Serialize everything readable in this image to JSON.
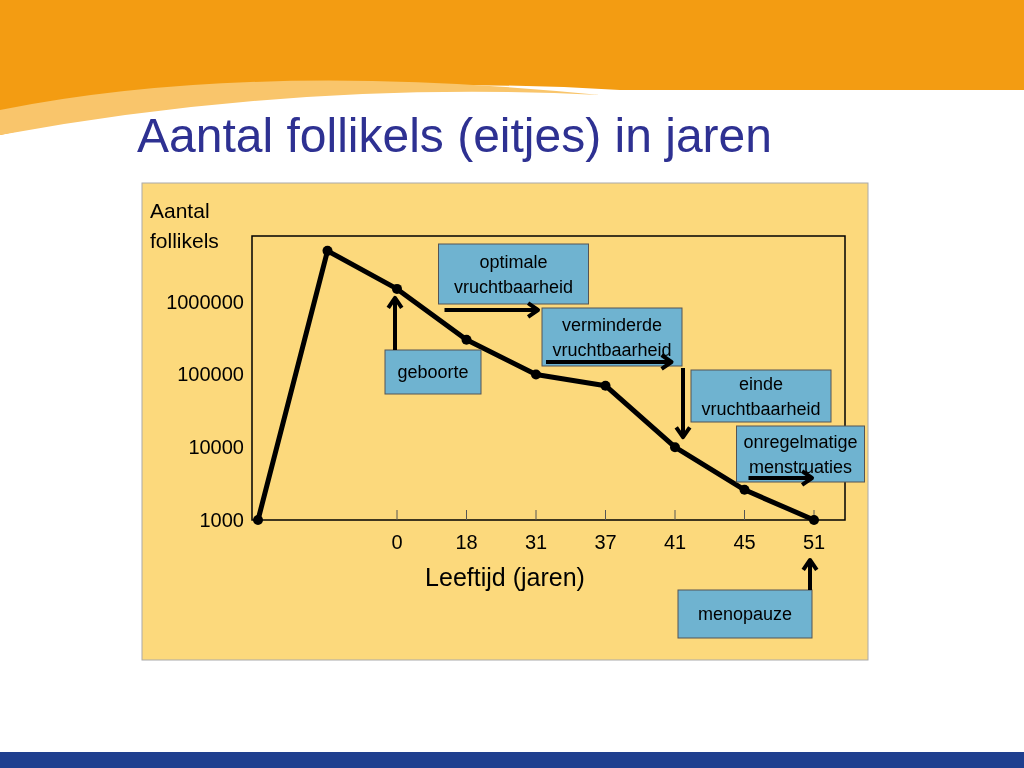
{
  "chart_data": {
    "type": "line",
    "title": "Aantal follikels (eitjes) in jaren",
    "xlabel": "Leeftijd (jaren)",
    "ylabel": "Aantal follikels",
    "categories": [
      null,
      null,
      "0",
      "18",
      "31",
      "37",
      "41",
      "45",
      "51"
    ],
    "series": [
      {
        "color": "#000000",
        "values": [
          1000,
          5000000,
          1500000,
          300000,
          100000,
          70000,
          10000,
          2600,
          1000
        ]
      }
    ],
    "log": true,
    "ylim": [
      1000,
      8000000
    ],
    "yticks": [
      1000,
      10000,
      100000,
      1000000
    ],
    "marker": "circle",
    "line_style": "solid",
    "annotations": [
      "geboorte",
      "optimale vruchtbaarheid",
      "verminderde vruchtbaarheid",
      "einde vruchtbaarheid",
      "onregelmatige menstruaties",
      "menopauze"
    ]
  }
}
